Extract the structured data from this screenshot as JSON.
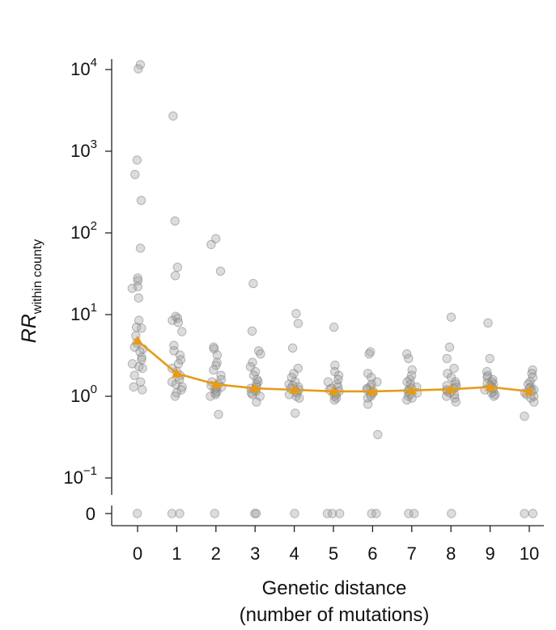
{
  "chart_data": {
    "type": "scatter",
    "y_scale": "log",
    "xlabel_lines": [
      "Genetic distance",
      "(number of mutations)"
    ],
    "ylabel": {
      "main": "RR",
      "subscript": "within county"
    },
    "x_ticks": [
      "0",
      "1",
      "2",
      "3",
      "4",
      "5",
      "6",
      "7",
      "8",
      "9",
      "10"
    ],
    "y_ticks": [
      {
        "value": 10000,
        "base": "10",
        "exp": "4"
      },
      {
        "value": 1000,
        "base": "10",
        "exp": "3"
      },
      {
        "value": 100,
        "base": "10",
        "exp": "2"
      },
      {
        "value": 10,
        "base": "10",
        "exp": "1"
      },
      {
        "value": 1,
        "base": "10",
        "exp": "0"
      },
      {
        "value": 0.1,
        "base": "10",
        "exp": "−1"
      }
    ],
    "zero_tick": "0",
    "ylim": [
      0.1,
      10000
    ],
    "accent_color": "#E69B17",
    "point_color": "#9a9a9a",
    "median_series": {
      "x": [
        0,
        1,
        2,
        3,
        4,
        5,
        6,
        7,
        8,
        9,
        10
      ],
      "y": [
        4.8,
        1.9,
        1.4,
        1.25,
        1.2,
        1.15,
        1.15,
        1.18,
        1.22,
        1.3,
        1.15
      ]
    },
    "points": [
      [
        0,
        11500
      ],
      [
        0,
        10200
      ],
      [
        0,
        780
      ],
      [
        0,
        520
      ],
      [
        0,
        250
      ],
      [
        0,
        65
      ],
      [
        0,
        28
      ],
      [
        0,
        26
      ],
      [
        0,
        22
      ],
      [
        0,
        21
      ],
      [
        0,
        16
      ],
      [
        0,
        8.5
      ],
      [
        0,
        7.0
      ],
      [
        0,
        6.8
      ],
      [
        0,
        5.5
      ],
      [
        0,
        4.5
      ],
      [
        0,
        4.0
      ],
      [
        0,
        3.8
      ],
      [
        0,
        3.5
      ],
      [
        0,
        3.0
      ],
      [
        0,
        2.8
      ],
      [
        0,
        2.5
      ],
      [
        0,
        2.3
      ],
      [
        0,
        2.2
      ],
      [
        0,
        1.8
      ],
      [
        0,
        1.5
      ],
      [
        0,
        1.3
      ],
      [
        0,
        1.2
      ],
      [
        1,
        2700
      ],
      [
        1,
        140
      ],
      [
        1,
        38
      ],
      [
        1,
        30
      ],
      [
        1,
        9.5
      ],
      [
        1,
        9.0
      ],
      [
        1,
        8.5
      ],
      [
        1,
        8.0
      ],
      [
        1,
        6.2
      ],
      [
        1,
        4.2
      ],
      [
        1,
        3.6
      ],
      [
        1,
        3.2
      ],
      [
        1,
        2.8
      ],
      [
        1,
        2.5
      ],
      [
        1,
        2.2
      ],
      [
        1,
        2.0
      ],
      [
        1,
        1.8
      ],
      [
        1,
        1.6
      ],
      [
        1,
        1.5
      ],
      [
        1,
        1.4
      ],
      [
        1,
        1.3
      ],
      [
        1,
        1.2
      ],
      [
        1,
        1.1
      ],
      [
        1,
        1.0
      ],
      [
        2,
        85
      ],
      [
        2,
        72
      ],
      [
        2,
        34
      ],
      [
        2,
        4.0
      ],
      [
        2,
        3.8
      ],
      [
        2,
        3.2
      ],
      [
        2,
        2.6
      ],
      [
        2,
        2.4
      ],
      [
        2,
        2.1
      ],
      [
        2,
        1.8
      ],
      [
        2,
        1.6
      ],
      [
        2,
        1.5
      ],
      [
        2,
        1.4
      ],
      [
        2,
        1.35
      ],
      [
        2,
        1.3
      ],
      [
        2,
        1.25
      ],
      [
        2,
        1.2
      ],
      [
        2,
        1.15
      ],
      [
        2,
        1.1
      ],
      [
        2,
        1.05
      ],
      [
        2,
        1.0
      ],
      [
        2,
        0.6
      ],
      [
        3,
        24
      ],
      [
        3,
        6.3
      ],
      [
        3,
        3.6
      ],
      [
        3,
        3.3
      ],
      [
        3,
        2.6
      ],
      [
        3,
        2.3
      ],
      [
        3,
        2.0
      ],
      [
        3,
        1.8
      ],
      [
        3,
        1.6
      ],
      [
        3,
        1.5
      ],
      [
        3,
        1.4
      ],
      [
        3,
        1.3
      ],
      [
        3,
        1.25
      ],
      [
        3,
        1.2
      ],
      [
        3,
        1.15
      ],
      [
        3,
        1.1
      ],
      [
        3,
        1.05
      ],
      [
        3,
        1.0
      ],
      [
        3,
        0.85
      ],
      [
        4,
        10.3
      ],
      [
        4,
        7.8
      ],
      [
        4,
        3.9
      ],
      [
        4,
        2.2
      ],
      [
        4,
        1.9
      ],
      [
        4,
        1.7
      ],
      [
        4,
        1.5
      ],
      [
        4,
        1.4
      ],
      [
        4,
        1.35
      ],
      [
        4,
        1.3
      ],
      [
        4,
        1.25
      ],
      [
        4,
        1.2
      ],
      [
        4,
        1.15
      ],
      [
        4,
        1.1
      ],
      [
        4,
        1.05
      ],
      [
        4,
        1.0
      ],
      [
        4,
        0.95
      ],
      [
        4,
        0.62
      ],
      [
        5,
        7.0
      ],
      [
        5,
        2.4
      ],
      [
        5,
        2.0
      ],
      [
        5,
        1.8
      ],
      [
        5,
        1.6
      ],
      [
        5,
        1.5
      ],
      [
        5,
        1.4
      ],
      [
        5,
        1.3
      ],
      [
        5,
        1.25
      ],
      [
        5,
        1.2
      ],
      [
        5,
        1.15
      ],
      [
        5,
        1.1
      ],
      [
        5,
        1.05
      ],
      [
        5,
        1.0
      ],
      [
        5,
        0.95
      ],
      [
        5,
        0.9
      ],
      [
        6,
        3.5
      ],
      [
        6,
        3.3
      ],
      [
        6,
        1.9
      ],
      [
        6,
        1.7
      ],
      [
        6,
        1.5
      ],
      [
        6,
        1.4
      ],
      [
        6,
        1.3
      ],
      [
        6,
        1.25
      ],
      [
        6,
        1.2
      ],
      [
        6,
        1.15
      ],
      [
        6,
        1.1
      ],
      [
        6,
        1.05
      ],
      [
        6,
        1.0
      ],
      [
        6,
        0.95
      ],
      [
        6,
        0.8
      ],
      [
        6,
        0.34
      ],
      [
        7,
        3.3
      ],
      [
        7,
        2.9
      ],
      [
        7,
        2.1
      ],
      [
        7,
        1.8
      ],
      [
        7,
        1.6
      ],
      [
        7,
        1.5
      ],
      [
        7,
        1.4
      ],
      [
        7,
        1.3
      ],
      [
        7,
        1.25
      ],
      [
        7,
        1.2
      ],
      [
        7,
        1.15
      ],
      [
        7,
        1.1
      ],
      [
        7,
        1.05
      ],
      [
        7,
        1.0
      ],
      [
        7,
        0.95
      ],
      [
        7,
        0.9
      ],
      [
        8,
        9.3
      ],
      [
        8,
        4.0
      ],
      [
        8,
        2.9
      ],
      [
        8,
        2.2
      ],
      [
        8,
        1.9
      ],
      [
        8,
        1.7
      ],
      [
        8,
        1.5
      ],
      [
        8,
        1.4
      ],
      [
        8,
        1.35
      ],
      [
        8,
        1.3
      ],
      [
        8,
        1.25
      ],
      [
        8,
        1.2
      ],
      [
        8,
        1.15
      ],
      [
        8,
        1.1
      ],
      [
        8,
        1.05
      ],
      [
        8,
        1.0
      ],
      [
        8,
        0.95
      ],
      [
        8,
        0.85
      ],
      [
        9,
        7.9
      ],
      [
        9,
        2.9
      ],
      [
        9,
        2.0
      ],
      [
        9,
        1.8
      ],
      [
        9,
        1.7
      ],
      [
        9,
        1.6
      ],
      [
        9,
        1.5
      ],
      [
        9,
        1.45
      ],
      [
        9,
        1.4
      ],
      [
        9,
        1.35
      ],
      [
        9,
        1.3
      ],
      [
        9,
        1.25
      ],
      [
        9,
        1.2
      ],
      [
        9,
        1.15
      ],
      [
        9,
        1.1
      ],
      [
        9,
        1.05
      ],
      [
        9,
        1.0
      ],
      [
        10,
        2.1
      ],
      [
        10,
        1.9
      ],
      [
        10,
        1.7
      ],
      [
        10,
        1.5
      ],
      [
        10,
        1.4
      ],
      [
        10,
        1.3
      ],
      [
        10,
        1.25
      ],
      [
        10,
        1.2
      ],
      [
        10,
        1.15
      ],
      [
        10,
        1.1
      ],
      [
        10,
        1.05
      ],
      [
        10,
        1.0
      ],
      [
        10,
        0.95
      ],
      [
        10,
        0.85
      ],
      [
        10,
        0.57
      ]
    ],
    "zero_points": [
      [
        0,
        1
      ],
      [
        1,
        2
      ],
      [
        2,
        1
      ],
      [
        3,
        2
      ],
      [
        4,
        1
      ],
      [
        5,
        3
      ],
      [
        6,
        2
      ],
      [
        7,
        2
      ],
      [
        8,
        1
      ],
      [
        9,
        0
      ],
      [
        10,
        2
      ]
    ]
  }
}
